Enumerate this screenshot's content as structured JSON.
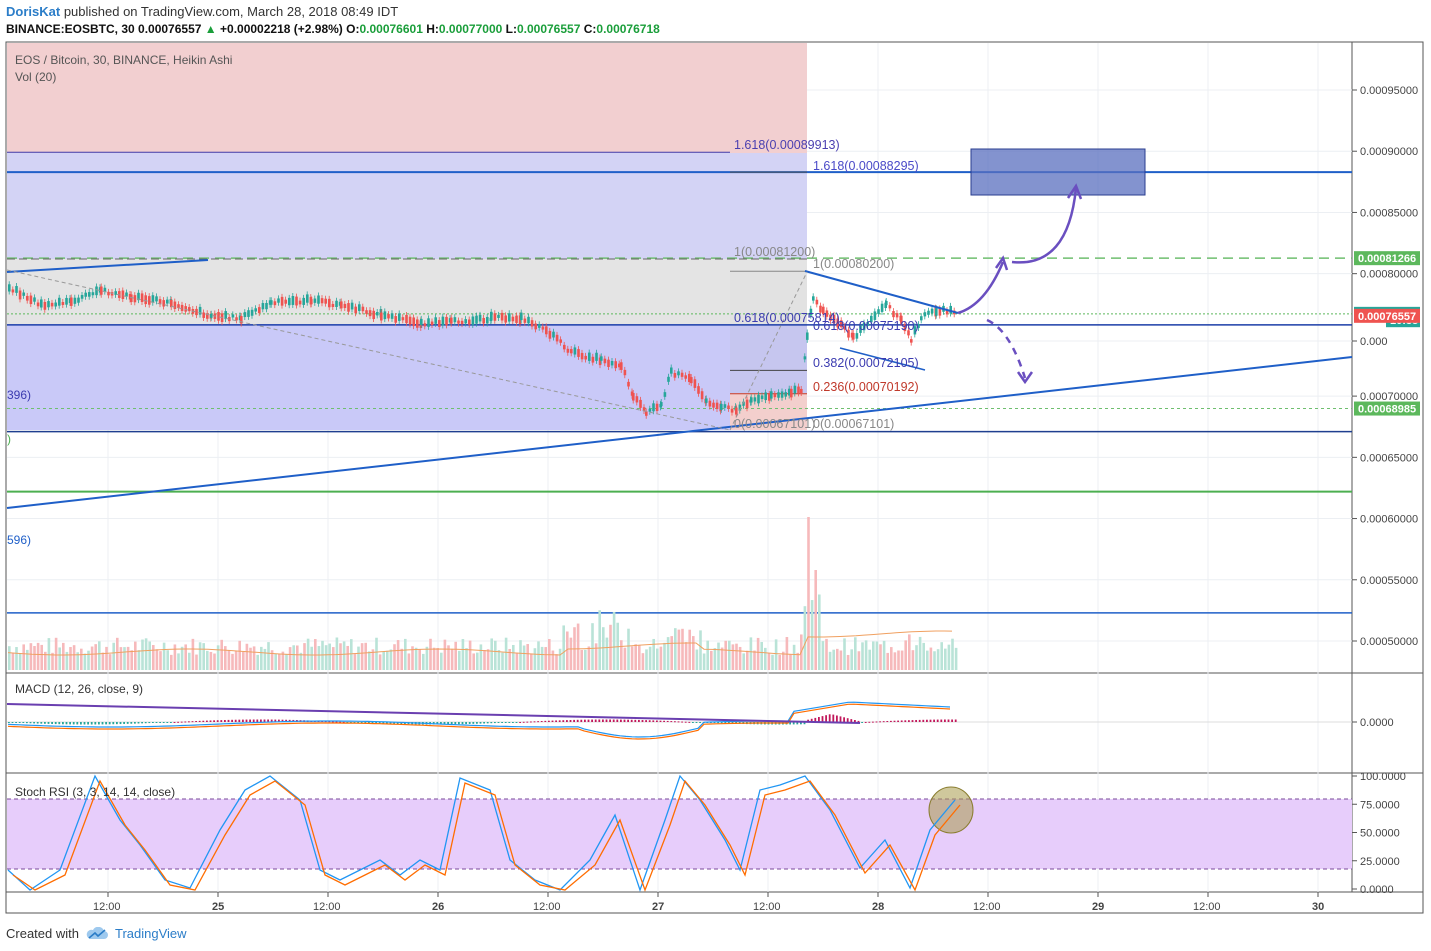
{
  "header": {
    "author": "DorisKat",
    "published_text": "published on TradingView.com, March 28, 2018 08:49 IDT",
    "symbol": "BINANCE:EOSBTC, 30",
    "last": "0.00076557",
    "change": "+0.00002218 (+2.98%)",
    "o_label": "O:",
    "o": "0.00076601",
    "h_label": "H:",
    "h": "0.00077000",
    "l_label": "L:",
    "l": "0.00076557",
    "c_label": "C:",
    "c": "0.00076718"
  },
  "main_pane": {
    "title": "EOS / Bitcoin, 30, BINANCE, Heikin Ashi",
    "vol_label": "Vol (20)",
    "left_cut_labels": [
      "396)",
      ")",
      "596)"
    ]
  },
  "fib_left": {
    "levels": [
      {
        "label": "1.618(0.00089913)",
        "value": 0.00089913
      },
      {
        "label": "1(0.00081200)",
        "value": 0.000812
      },
      {
        "label": "0.618(0.00075814)",
        "value": 0.00075814
      },
      {
        "label": "0(0.00067101)",
        "value": 0.00067101
      }
    ]
  },
  "fib_right": {
    "levels": [
      {
        "label": "1.618(0.00088295)",
        "value": 0.00088295
      },
      {
        "label": "1(0.00080200)",
        "value": 0.000802
      },
      {
        "label": "0.618(0.00075190)",
        "value": 0.0007519
      },
      {
        "label": "0.382(0.00072105)",
        "value": 0.00072105
      },
      {
        "label": "0.236(0.00070192)",
        "value": 0.00070192
      },
      {
        "label": "0(0.00067101)",
        "value": 0.00067101
      }
    ]
  },
  "price_axis": {
    "ticks": [
      "0.00095000",
      "0.00090000",
      "0.00085000",
      "0.00080000",
      "0.000",
      "0.00070000",
      "0.00065000",
      "0.00060000",
      "0.00055000",
      "0.00050000"
    ],
    "tick_values": [
      0.00095,
      0.0009,
      0.00085,
      0.0008,
      0.000745,
      0.0007,
      0.00065,
      0.0006,
      0.00055,
      0.0005
    ],
    "badges": [
      {
        "text": "0.00081266",
        "value": 0.00081266,
        "bg": "#5cb85c"
      },
      {
        "text": "0.00076718",
        "value": 0.00076718,
        "bg": "#26a69a"
      },
      {
        "text": "10:38",
        "value": 0.000762,
        "bg": "#26a69a"
      },
      {
        "text": "0.00076557",
        "value": 0.00076557,
        "bg": "#ef5350"
      },
      {
        "text": "0.00068985",
        "value": 0.00068985,
        "bg": "#5cb85c"
      }
    ]
  },
  "macd": {
    "title": "MACD (12, 26, close, 9)",
    "axis_tick": "0.0000"
  },
  "stoch": {
    "title": "Stoch RSI (3, 3, 14, 14, close)",
    "axis_ticks": [
      "100.0000",
      "75.0000",
      "50.0000",
      "25.0000",
      "0.0000"
    ],
    "axis_values": [
      100,
      75,
      50,
      25,
      0
    ]
  },
  "time_axis": {
    "labels": [
      "12:00",
      "25",
      "12:00",
      "26",
      "12:00",
      "27",
      "12:00",
      "28",
      "12:00",
      "29",
      "12:00",
      "30"
    ]
  },
  "footer": {
    "created_with": "Created with",
    "brand": "TradingView"
  },
  "colors": {
    "up": "#26a69a",
    "down": "#ef5350",
    "trendline": "#1f5fc8",
    "fib_blue": "#3b3bb0",
    "support_green": "#4caf50",
    "annotation_purple": "#6a4fc0",
    "target_box": "#5a6fbf"
  },
  "chart_data": {
    "type": "candlestick",
    "title": "EOS / Bitcoin, 30, BINANCE, Heikin Ashi",
    "x_axis": [
      "12:00",
      "25",
      "12:00",
      "26",
      "12:00",
      "27",
      "12:00",
      "28",
      "12:00",
      "29",
      "12:00",
      "30"
    ],
    "y_range": [
      0.000476,
      0.000985
    ],
    "last_close": 0.00076718,
    "high": 0.00077,
    "low": 0.00076557,
    "key_levels": [
      0.00089913,
      0.00088295,
      0.00081266,
      0.000812,
      0.000802,
      0.00075814,
      0.0007519,
      0.00072105,
      0.00070192,
      0.00068985,
      0.00067101,
      0.000622,
      0.000523
    ]
  }
}
